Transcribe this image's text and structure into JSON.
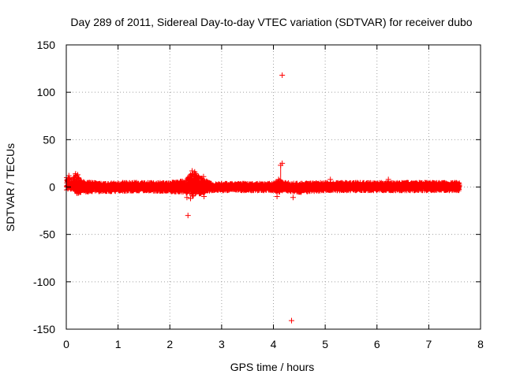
{
  "chart_data": {
    "type": "scatter",
    "title": "Day 289 of 2011, Sidereal Day-to-day VTEC variation (SDTVAR) for receiver dubo",
    "xlabel": "GPS time / hours",
    "ylabel": "SDTVAR / TECUs",
    "xlim": [
      0,
      8
    ],
    "ylim": [
      -150,
      150
    ],
    "x_ticks": [
      0,
      1,
      2,
      3,
      4,
      5,
      6,
      7,
      8
    ],
    "y_ticks": [
      -150,
      -100,
      -50,
      0,
      50,
      100,
      150
    ],
    "x_tick_labels": [
      "0",
      "1",
      "2",
      "3",
      "4",
      "5",
      "6",
      "7",
      "8"
    ],
    "y_tick_labels": [
      "-150",
      "-100",
      "-50",
      "0",
      "50",
      "100",
      "150"
    ],
    "grid": true,
    "marker": "+",
    "color": "#ff0000",
    "x_range_of_data": [
      0,
      7.6
    ],
    "band": [
      {
        "x": 0.0,
        "low": -3,
        "high": 11
      },
      {
        "x": 0.1,
        "low": -3,
        "high": 9
      },
      {
        "x": 0.2,
        "low": -7,
        "high": 14
      },
      {
        "x": 0.3,
        "low": -6,
        "high": 6
      },
      {
        "x": 0.5,
        "low": -5,
        "high": 5
      },
      {
        "x": 0.8,
        "low": -5,
        "high": 4
      },
      {
        "x": 1.0,
        "low": -5,
        "high": 5
      },
      {
        "x": 1.5,
        "low": -4,
        "high": 5
      },
      {
        "x": 2.0,
        "low": -5,
        "high": 5
      },
      {
        "x": 2.3,
        "low": -6,
        "high": 7
      },
      {
        "x": 2.45,
        "low": -10,
        "high": 17
      },
      {
        "x": 2.6,
        "low": -7,
        "high": 10
      },
      {
        "x": 2.8,
        "low": -4,
        "high": 4
      },
      {
        "x": 3.5,
        "low": -4,
        "high": 4
      },
      {
        "x": 4.0,
        "low": -4,
        "high": 4
      },
      {
        "x": 4.1,
        "low": -6,
        "high": 8
      },
      {
        "x": 4.2,
        "low": -4,
        "high": 5
      },
      {
        "x": 4.5,
        "low": -6,
        "high": 4
      },
      {
        "x": 5.0,
        "low": -4,
        "high": 5
      },
      {
        "x": 6.0,
        "low": -4,
        "high": 5
      },
      {
        "x": 7.0,
        "low": -4,
        "high": 5
      },
      {
        "x": 7.6,
        "low": -4,
        "high": 5
      }
    ],
    "outliers": [
      {
        "x": 4.17,
        "y": 118
      },
      {
        "x": 4.17,
        "y": 25
      },
      {
        "x": 4.14,
        "y": 23
      },
      {
        "x": 4.1,
        "y": 8
      },
      {
        "x": 4.07,
        "y": -10
      },
      {
        "x": 4.35,
        "y": -141
      },
      {
        "x": 4.38,
        "y": -11
      },
      {
        "x": 2.35,
        "y": -30
      },
      {
        "x": 2.33,
        "y": -11
      },
      {
        "x": 2.4,
        "y": -12
      },
      {
        "x": 2.43,
        "y": 17
      },
      {
        "x": 2.48,
        "y": 16
      },
      {
        "x": 2.5,
        "y": 14
      },
      {
        "x": 2.65,
        "y": 11
      },
      {
        "x": 2.66,
        "y": -10
      },
      {
        "x": 0.05,
        "y": 12
      },
      {
        "x": 0.18,
        "y": 14
      },
      {
        "x": 0.22,
        "y": 13
      },
      {
        "x": 5.1,
        "y": 8
      },
      {
        "x": 6.22,
        "y": 8
      }
    ],
    "spikes": [
      {
        "x": 4.14,
        "low": 0,
        "high": 22
      }
    ]
  }
}
